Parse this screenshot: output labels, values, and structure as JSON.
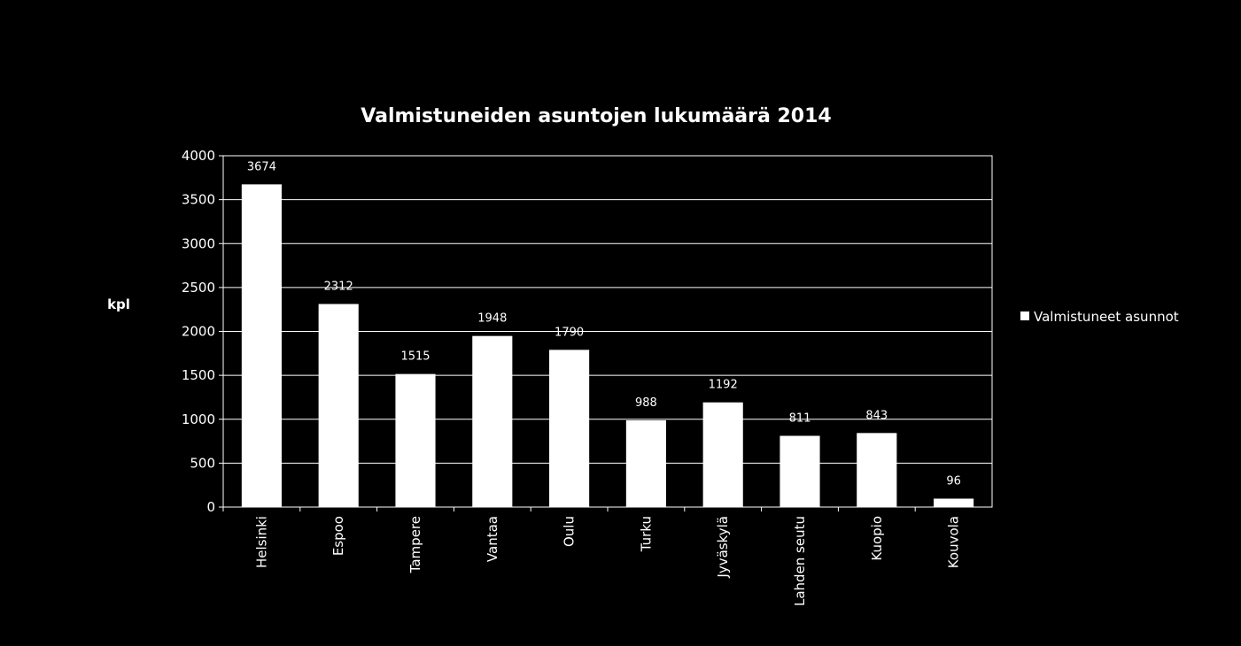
{
  "chart_data": {
    "type": "bar",
    "title": "Valmistuneiden asuntojen lukumäärä 2014",
    "ylabel": "kpl",
    "xlabel": "",
    "categories": [
      "Helsinki",
      "Espoo",
      "Tampere",
      "Vantaa",
      "Oulu",
      "Turku",
      "Jyväskylä",
      "Lahden seutu",
      "Kuopio",
      "Kouvola"
    ],
    "series": [
      {
        "name": "Valmistuneet asunnot",
        "values": [
          3674,
          2312,
          1515,
          1948,
          1790,
          988,
          1192,
          811,
          843,
          96
        ]
      }
    ],
    "ylim": [
      0,
      4000
    ],
    "yticks": [
      "0",
      "500",
      "1000",
      "1500",
      "2000",
      "2500",
      "3000",
      "3500",
      "4000"
    ],
    "data_labels": [
      "3674",
      "2312",
      "1515",
      "1948",
      "1790",
      "988",
      "1192",
      "811",
      "843",
      "96"
    ],
    "grid": true,
    "legend_position": "right",
    "colors": {
      "background": "#000000",
      "bar": "#ffffff",
      "text": "#ffffff",
      "grid": "#ffffff"
    }
  }
}
